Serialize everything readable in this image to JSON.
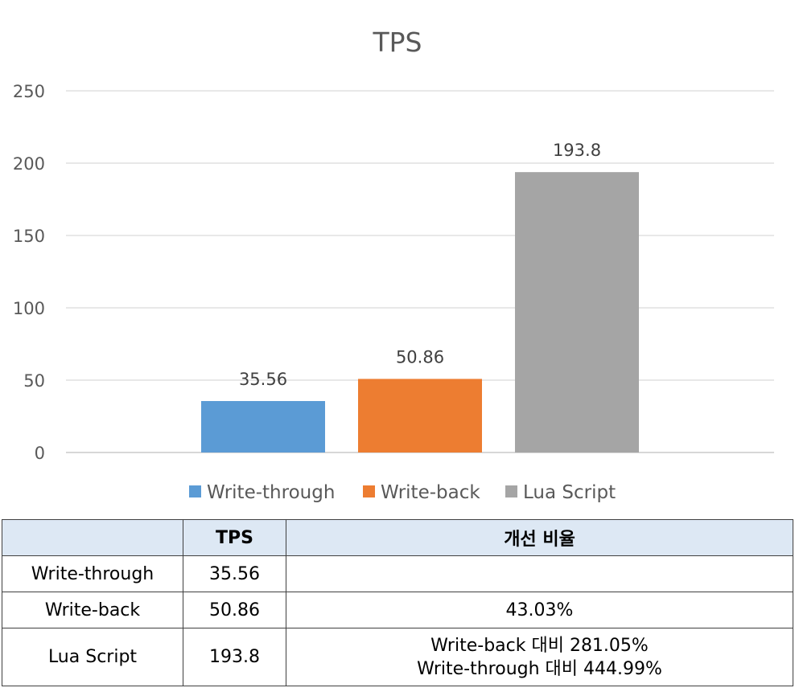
{
  "chart_data": {
    "type": "bar",
    "title": "TPS",
    "categories": [
      "Write-through",
      "Write-back",
      "Lua Script"
    ],
    "values": [
      35.56,
      50.86,
      193.8
    ],
    "data_labels": [
      "35.56",
      "50.86",
      "193.8"
    ],
    "colors": [
      "#5b9bd5",
      "#ed7d31",
      "#a5a5a5"
    ],
    "ylim": [
      0,
      250
    ],
    "yticks": [
      0,
      50,
      100,
      150,
      200,
      250
    ],
    "grid": true,
    "legend_position": "bottom"
  },
  "table": {
    "headers": [
      "",
      "TPS",
      "개선 비율"
    ],
    "rows": [
      {
        "name": "Write-through",
        "tps": "35.56",
        "ratio": []
      },
      {
        "name": "Write-back",
        "tps": "50.86",
        "ratio": [
          "43.03%"
        ]
      },
      {
        "name": "Lua Script",
        "tps": "193.8",
        "ratio": [
          "Write-back 대비 281.05%",
          "Write-through 대비 444.99%"
        ]
      }
    ]
  }
}
